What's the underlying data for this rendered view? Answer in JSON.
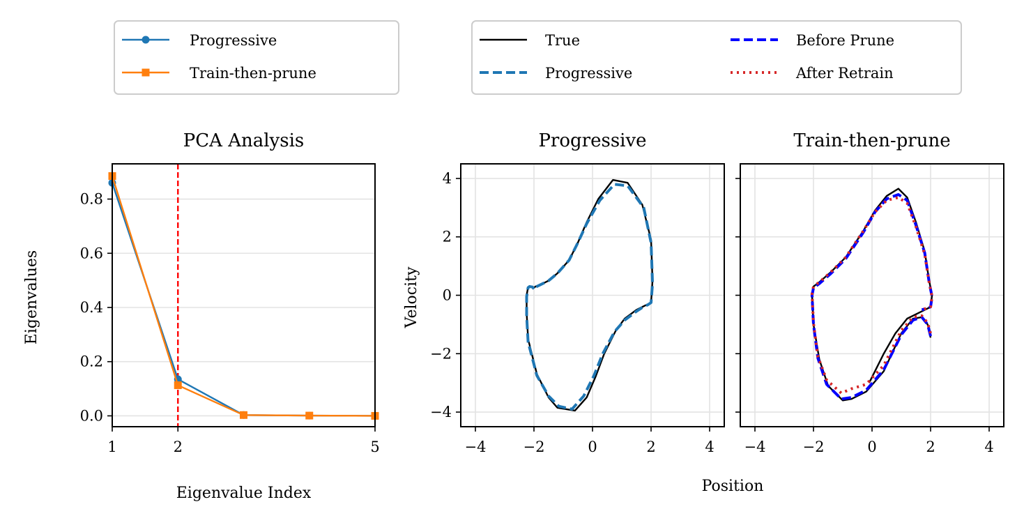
{
  "legends": [
    {
      "entries": [
        {
          "label": "Progressive",
          "color": "#1f77b4",
          "style": "solid",
          "marker": "circle"
        },
        {
          "label": "Train-then-prune",
          "color": "#ff7f0e",
          "style": "solid",
          "marker": "square"
        }
      ]
    },
    {
      "entries": [
        {
          "label": "True",
          "color": "#000000",
          "style": "solid"
        },
        {
          "label": "Before Prune",
          "color": "#0000ff",
          "style": "dashed"
        },
        {
          "label": "Progressive",
          "color": "#1f77b4",
          "style": "dashed"
        },
        {
          "label": "After Retrain",
          "color": "#d62728",
          "style": "dotted"
        }
      ]
    }
  ],
  "shared_xlabel": "Position",
  "chart_data": [
    {
      "type": "line",
      "title": "PCA Analysis",
      "xlabel": "Eigenvalue Index",
      "ylabel": "Eigenvalues",
      "xlim": [
        1,
        5
      ],
      "ylim": [
        -0.04,
        0.93
      ],
      "xticks": [
        1,
        2,
        5
      ],
      "yticks": [
        0.0,
        0.2,
        0.4,
        0.6,
        0.8
      ],
      "ytick_labels": [
        "0.0",
        "0.2",
        "0.4",
        "0.6",
        "0.8"
      ],
      "grid": "y",
      "vline": {
        "x": 2,
        "color": "#ff0000",
        "style": "dashed"
      },
      "series": [
        {
          "name": "Progressive",
          "color": "#1f77b4",
          "marker": "circle",
          "x": [
            1,
            2,
            3,
            4,
            5
          ],
          "values": [
            0.86,
            0.135,
            0.003,
            0.001,
            0.0
          ]
        },
        {
          "name": "Train-then-prune",
          "color": "#ff7f0e",
          "marker": "square",
          "x": [
            1,
            2,
            3,
            4,
            5
          ],
          "values": [
            0.885,
            0.113,
            0.003,
            0.001,
            0.0
          ]
        }
      ]
    },
    {
      "type": "line",
      "title": "Progressive",
      "xlabel": "",
      "ylabel": "Velocity",
      "xlim": [
        -4.5,
        4.5
      ],
      "ylim": [
        -4.5,
        4.5
      ],
      "xticks": [
        -4,
        -2,
        0,
        2,
        4
      ],
      "yticks": [
        -4,
        -2,
        0,
        2,
        4
      ],
      "xtick_labels": [
        "−4",
        "−2",
        "0",
        "2",
        "4"
      ],
      "ytick_labels": [
        "−4",
        "−2",
        "0",
        "2",
        "4"
      ],
      "grid": "both",
      "series": [
        {
          "name": "True",
          "color": "#000000",
          "style": "solid",
          "x": [
            -2.0,
            -2.05,
            -2.15,
            -2.2,
            -2.25,
            -2.25,
            -2.2,
            -1.9,
            -1.5,
            -1.2,
            -0.6,
            -0.2,
            0.1,
            0.4,
            0.8,
            1.1,
            1.5,
            1.7,
            1.9,
            2.0,
            2.05,
            2.0,
            1.7,
            1.2,
            0.7,
            0.2,
            -0.2,
            -0.5,
            -0.8,
            -1.2,
            -1.5,
            -1.8,
            -1.95,
            -2.0
          ],
          "y": [
            0.25,
            0.3,
            0.3,
            0.28,
            0.0,
            -0.6,
            -1.5,
            -2.7,
            -3.5,
            -3.85,
            -3.95,
            -3.5,
            -2.8,
            -2.0,
            -1.2,
            -0.8,
            -0.5,
            -0.4,
            -0.3,
            -0.25,
            0.5,
            1.9,
            3.1,
            3.85,
            3.95,
            3.3,
            2.5,
            1.8,
            1.2,
            0.75,
            0.5,
            0.35,
            0.3,
            0.25
          ]
        },
        {
          "name": "Progressive",
          "color": "#1f77b4",
          "style": "dashed",
          "x": [
            -2.0,
            -2.05,
            -2.15,
            -2.2,
            -2.25,
            -2.25,
            -2.2,
            -1.9,
            -1.5,
            -1.15,
            -0.7,
            -0.3,
            0.05,
            0.35,
            0.75,
            1.1,
            1.5,
            1.7,
            1.9,
            2.0,
            2.05,
            2.0,
            1.75,
            1.2,
            0.75,
            0.25,
            -0.2,
            -0.5,
            -0.8,
            -1.2,
            -1.5,
            -1.8,
            -1.95,
            -2.0
          ],
          "y": [
            0.22,
            0.28,
            0.3,
            0.26,
            -0.05,
            -0.7,
            -1.6,
            -2.75,
            -3.45,
            -3.8,
            -3.9,
            -3.45,
            -2.75,
            -2.0,
            -1.25,
            -0.85,
            -0.55,
            -0.42,
            -0.32,
            -0.25,
            0.4,
            1.8,
            3.0,
            3.75,
            3.8,
            3.25,
            2.45,
            1.8,
            1.2,
            0.75,
            0.5,
            0.35,
            0.28,
            0.22
          ]
        }
      ]
    },
    {
      "type": "line",
      "title": "Train-then-prune",
      "xlabel": "",
      "ylabel": "",
      "xlim": [
        -4.5,
        4.5
      ],
      "ylim": [
        -4.5,
        4.5
      ],
      "xticks": [
        -4,
        -2,
        0,
        2,
        4
      ],
      "yticks": [
        -4,
        -2,
        0,
        2,
        4
      ],
      "xtick_labels": [
        "−4",
        "−2",
        "0",
        "2",
        "4"
      ],
      "ytick_labels": [],
      "grid": "both",
      "series": [
        {
          "name": "True",
          "color": "#000000",
          "style": "solid",
          "x": [
            2.0,
            1.9,
            1.7,
            1.4,
            1.0,
            0.4,
            -0.2,
            -0.7,
            -1.0,
            -1.5,
            -1.8,
            -2.0,
            -2.05,
            -2.0,
            -1.8,
            -1.4,
            -0.9,
            -0.3,
            0.1,
            0.5,
            0.9,
            1.2,
            1.5,
            1.8,
            1.95,
            2.05,
            2.0,
            1.7,
            1.2,
            0.8,
            0.4,
            0.1,
            -0.1
          ],
          "y": [
            -1.45,
            -1.0,
            -0.75,
            -0.8,
            -1.3,
            -2.6,
            -3.3,
            -3.55,
            -3.6,
            -3.1,
            -2.2,
            -1.0,
            0.0,
            0.3,
            0.45,
            0.8,
            1.3,
            2.2,
            2.9,
            3.4,
            3.65,
            3.35,
            2.5,
            1.5,
            0.5,
            0.0,
            -0.4,
            -0.55,
            -0.8,
            -1.3,
            -2.0,
            -2.6,
            -3.0
          ]
        },
        {
          "name": "Before Prune",
          "color": "#0000ff",
          "style": "dashed",
          "x": [
            2.0,
            1.9,
            1.7,
            1.4,
            1.0,
            0.4,
            -0.2,
            -0.7,
            -1.05,
            -1.55,
            -1.85,
            -2.0,
            -2.05,
            -2.0,
            -1.8,
            -1.4,
            -0.9,
            -0.3,
            0.1,
            0.5,
            0.9,
            1.2,
            1.5,
            1.8,
            1.95,
            2.05,
            2.0,
            1.7
          ],
          "y": [
            -1.4,
            -1.0,
            -0.75,
            -0.85,
            -1.35,
            -2.55,
            -3.25,
            -3.5,
            -3.55,
            -3.05,
            -2.15,
            -1.0,
            0.0,
            0.25,
            0.4,
            0.75,
            1.25,
            2.15,
            2.85,
            3.3,
            3.45,
            3.25,
            2.4,
            1.45,
            0.45,
            -0.05,
            -0.4,
            -0.5
          ]
        },
        {
          "name": "After Retrain",
          "color": "#d62728",
          "style": "dotted",
          "x": [
            2.0,
            1.9,
            1.7,
            1.4,
            1.0,
            0.4,
            -0.2,
            -0.7,
            -1.05,
            -1.55,
            -1.85,
            -2.0,
            -2.05,
            -2.0,
            -1.8,
            -1.4,
            -0.9,
            -0.3,
            0.1,
            0.5,
            0.9,
            1.2,
            1.5,
            1.8,
            1.95,
            2.05,
            2.0,
            1.7
          ],
          "y": [
            -1.3,
            -0.95,
            -0.7,
            -0.75,
            -1.2,
            -2.4,
            -3.05,
            -3.2,
            -3.35,
            -2.9,
            -2.1,
            -0.95,
            0.05,
            0.3,
            0.45,
            0.8,
            1.3,
            2.2,
            2.85,
            3.25,
            3.35,
            3.15,
            2.35,
            1.4,
            0.45,
            -0.05,
            -0.4,
            -0.5
          ]
        }
      ]
    }
  ]
}
